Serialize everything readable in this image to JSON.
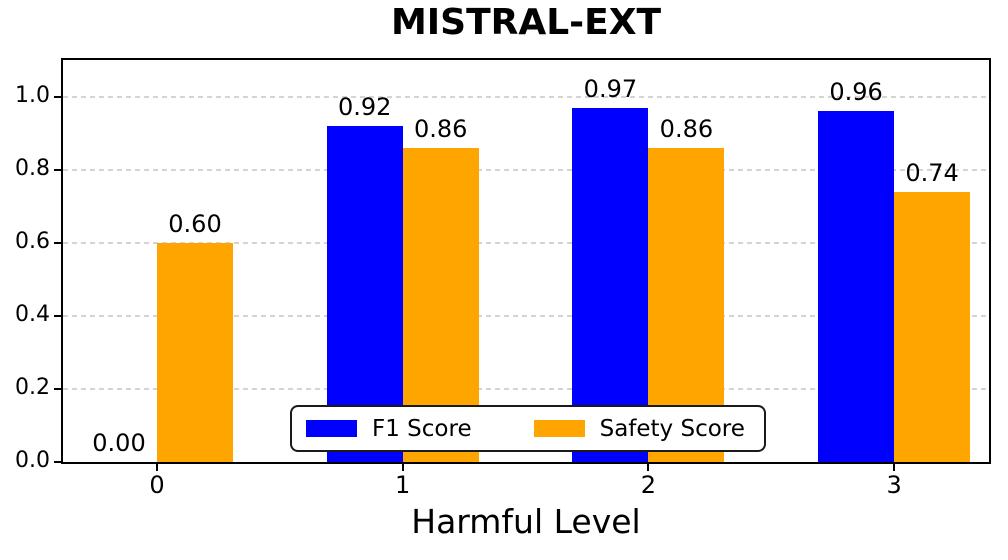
{
  "chart_data": {
    "type": "bar",
    "title": "MISTRAL-EXT",
    "xlabel": "Harmful Level",
    "ylabel": "",
    "categories": [
      "0",
      "1",
      "2",
      "3"
    ],
    "series": [
      {
        "name": "F1 Score",
        "color": "#0000FF",
        "values": [
          0.0,
          0.92,
          0.97,
          0.96
        ],
        "labels": [
          "0.00",
          "0.92",
          "0.97",
          "0.96"
        ]
      },
      {
        "name": "Safety Score",
        "color": "#FFA500",
        "values": [
          0.6,
          0.86,
          0.86,
          0.74
        ],
        "labels": [
          "0.60",
          "0.86",
          "0.86",
          "0.74"
        ]
      }
    ],
    "ylim": [
      0,
      1.1
    ],
    "yticks": [
      "0.0",
      "0.2",
      "0.4",
      "0.6",
      "0.8",
      "1.0"
    ],
    "ytick_values": [
      0.0,
      0.2,
      0.4,
      0.6,
      0.8,
      1.0
    ],
    "grid": "horizontal dashed",
    "legend_position": "lower center inside",
    "text_color": "#000000",
    "grid_color": "#d4d4d4"
  }
}
